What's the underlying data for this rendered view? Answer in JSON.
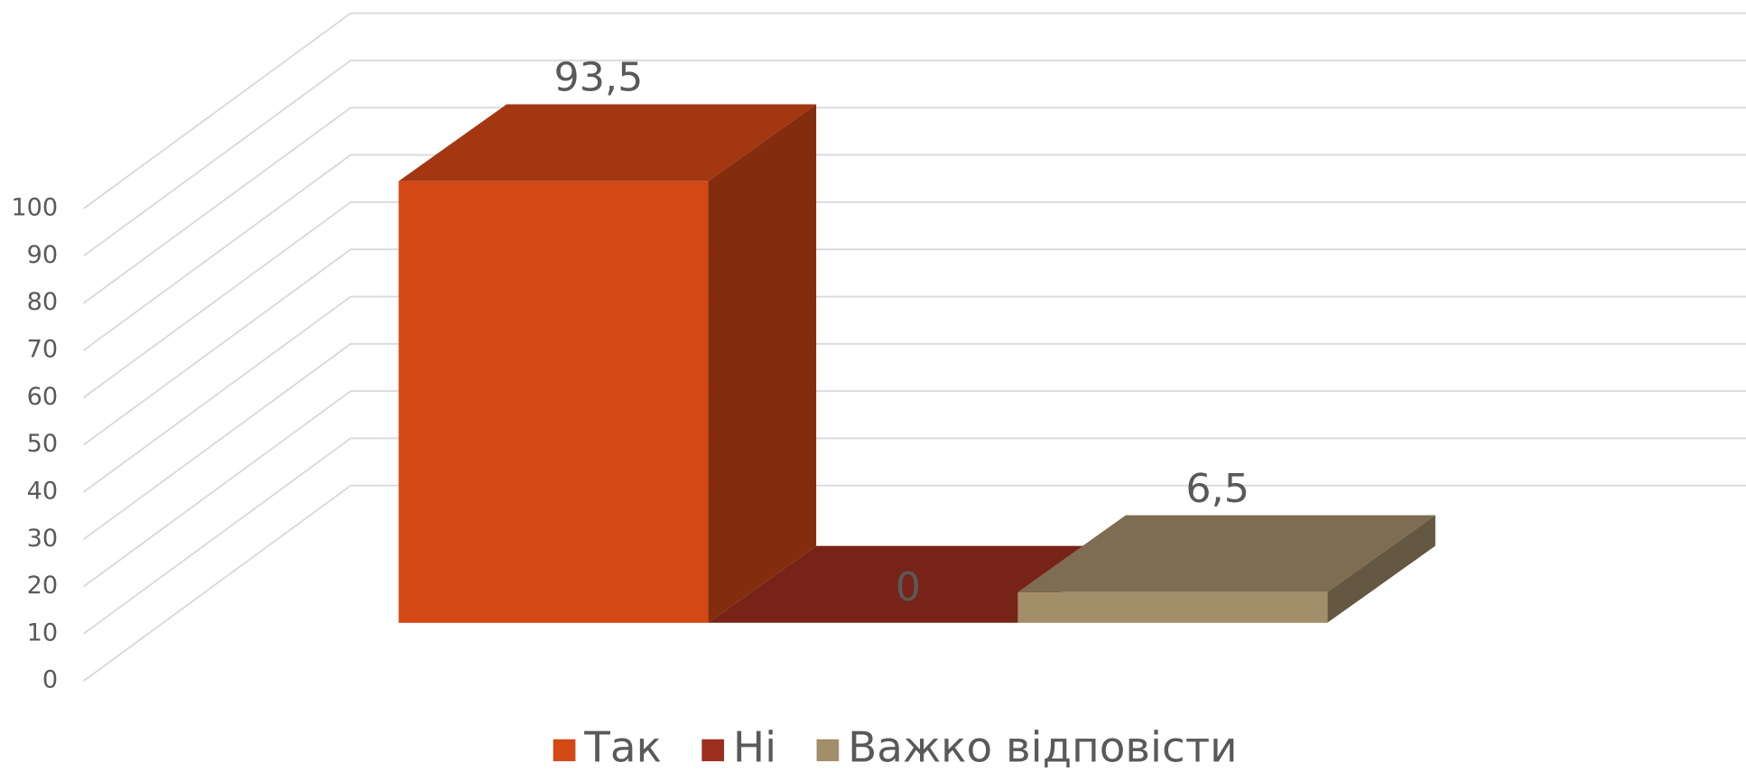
{
  "chart_data": {
    "type": "bar3d",
    "series": [
      {
        "name": "Так",
        "color": "#D44816",
        "values": [
          93.5
        ],
        "value_labels": [
          "93,5"
        ]
      },
      {
        "name": "Ні",
        "color": "#9B2E1F",
        "values": [
          0
        ]
      },
      {
        "name": "Важко відповісти",
        "color": "#A38E6A",
        "values": [
          6.5
        ],
        "value_labels": [
          "6,5"
        ]
      }
    ],
    "ylim": [
      0,
      100
    ],
    "yticks": [
      0,
      10,
      20,
      30,
      40,
      50,
      60,
      70,
      80,
      90,
      100
    ],
    "grid": true,
    "legend": "bottom"
  }
}
